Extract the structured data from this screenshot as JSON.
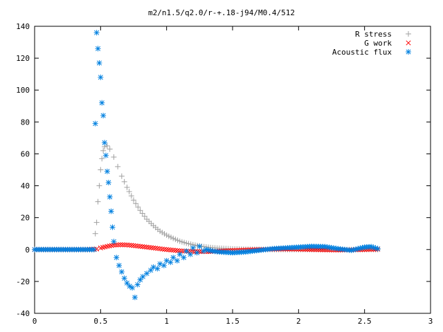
{
  "chart_data": {
    "type": "scatter",
    "title": "m2/n1.5/q2.0/r-+.18-j94/M0.4/512",
    "xlabel": "",
    "ylabel": "",
    "xlim": [
      0,
      3
    ],
    "ylim": [
      -40,
      140
    ],
    "xticks": [
      0,
      0.5,
      1,
      1.5,
      2,
      2.5,
      3
    ],
    "xtick_labels": [
      "0",
      "0.5",
      "1",
      "1.5",
      "2",
      "2.5",
      "3"
    ],
    "yticks": [
      -40,
      -20,
      0,
      20,
      40,
      60,
      80,
      100,
      120,
      140
    ],
    "ytick_labels": [
      "-40",
      "-20",
      "0",
      "20",
      "40",
      "60",
      "80",
      "100",
      "120",
      "140"
    ],
    "grid": false,
    "legend_position": "top-right",
    "series": [
      {
        "name": "R stress",
        "marker": "plus",
        "color": "#a0a0a0",
        "points": [
          [
            0,
            0
          ],
          [
            0.1,
            0
          ],
          [
            0.2,
            0
          ],
          [
            0.3,
            0
          ],
          [
            0.4,
            0
          ],
          [
            0.45,
            0
          ],
          [
            0.46,
            10
          ],
          [
            0.47,
            17
          ],
          [
            0.48,
            30
          ],
          [
            0.49,
            40
          ],
          [
            0.5,
            50
          ],
          [
            0.51,
            57
          ],
          [
            0.52,
            62
          ],
          [
            0.53,
            64.5
          ],
          [
            0.55,
            65
          ],
          [
            0.57,
            63
          ],
          [
            0.6,
            58
          ],
          [
            0.63,
            52
          ],
          [
            0.66,
            46
          ],
          [
            0.7,
            39
          ],
          [
            0.75,
            31
          ],
          [
            0.8,
            24.5
          ],
          [
            0.85,
            19
          ],
          [
            0.9,
            15
          ],
          [
            0.95,
            11.5
          ],
          [
            1.0,
            9
          ],
          [
            1.05,
            7
          ],
          [
            1.1,
            5.2
          ],
          [
            1.15,
            4
          ],
          [
            1.2,
            3
          ],
          [
            1.25,
            2.2
          ],
          [
            1.3,
            1.6
          ],
          [
            1.35,
            1.1
          ],
          [
            1.4,
            0.8
          ],
          [
            1.5,
            0.4
          ],
          [
            1.6,
            0.2
          ],
          [
            1.8,
            0
          ],
          [
            2.0,
            0
          ],
          [
            2.2,
            0
          ],
          [
            2.4,
            0
          ],
          [
            2.6,
            0
          ]
        ]
      },
      {
        "name": "G work",
        "marker": "cross",
        "color": "#ff0000",
        "points": [
          [
            0,
            0
          ],
          [
            0.2,
            0
          ],
          [
            0.4,
            0
          ],
          [
            0.47,
            0.3
          ],
          [
            0.5,
            1
          ],
          [
            0.55,
            2
          ],
          [
            0.6,
            2.8
          ],
          [
            0.65,
            3
          ],
          [
            0.7,
            2.9
          ],
          [
            0.75,
            2.5
          ],
          [
            0.8,
            2
          ],
          [
            0.85,
            1.5
          ],
          [
            0.9,
            1
          ],
          [
            0.95,
            0.5
          ],
          [
            1.0,
            0
          ],
          [
            1.05,
            -0.4
          ],
          [
            1.1,
            -0.8
          ],
          [
            1.2,
            -1.2
          ],
          [
            1.3,
            -1.3
          ],
          [
            1.4,
            -1
          ],
          [
            1.5,
            -0.6
          ],
          [
            1.6,
            -0.3
          ],
          [
            1.7,
            0
          ],
          [
            1.8,
            0.2
          ],
          [
            1.9,
            0.3
          ],
          [
            2.0,
            0.2
          ],
          [
            2.1,
            0
          ],
          [
            2.2,
            -0.2
          ],
          [
            2.3,
            -0.3
          ],
          [
            2.4,
            -0.2
          ],
          [
            2.5,
            0
          ],
          [
            2.6,
            0.2
          ]
        ]
      },
      {
        "name": "Acoustic flux",
        "marker": "star",
        "color": "#0080e0",
        "points": [
          [
            0,
            0
          ],
          [
            0.1,
            0
          ],
          [
            0.2,
            0
          ],
          [
            0.3,
            0
          ],
          [
            0.4,
            0
          ],
          [
            0.45,
            0
          ],
          [
            0.46,
            79
          ],
          [
            0.47,
            136
          ],
          [
            0.48,
            126
          ],
          [
            0.49,
            117
          ],
          [
            0.5,
            108
          ],
          [
            0.51,
            92
          ],
          [
            0.52,
            84
          ],
          [
            0.53,
            67
          ],
          [
            0.54,
            59
          ],
          [
            0.55,
            49
          ],
          [
            0.56,
            42
          ],
          [
            0.57,
            33
          ],
          [
            0.58,
            24
          ],
          [
            0.59,
            14
          ],
          [
            0.6,
            5
          ],
          [
            0.62,
            -5
          ],
          [
            0.64,
            -10
          ],
          [
            0.66,
            -14
          ],
          [
            0.68,
            -18
          ],
          [
            0.7,
            -21
          ],
          [
            0.72,
            -23
          ],
          [
            0.74,
            -24
          ],
          [
            0.76,
            -30
          ],
          [
            0.78,
            -22
          ],
          [
            0.8,
            -19
          ],
          [
            0.82,
            -17
          ],
          [
            0.85,
            -15
          ],
          [
            0.88,
            -13
          ],
          [
            0.9,
            -11
          ],
          [
            0.93,
            -12
          ],
          [
            0.95,
            -9
          ],
          [
            0.98,
            -10
          ],
          [
            1.0,
            -7
          ],
          [
            1.03,
            -8
          ],
          [
            1.05,
            -5
          ],
          [
            1.08,
            -7
          ],
          [
            1.1,
            -3
          ],
          [
            1.13,
            -5
          ],
          [
            1.15,
            -1
          ],
          [
            1.18,
            -3
          ],
          [
            1.2,
            1
          ],
          [
            1.23,
            -2
          ],
          [
            1.25,
            2
          ],
          [
            1.28,
            -1
          ],
          [
            1.3,
            0
          ],
          [
            1.35,
            -1
          ],
          [
            1.4,
            -1.5
          ],
          [
            1.5,
            -2
          ],
          [
            1.6,
            -1.5
          ],
          [
            1.7,
            -0.5
          ],
          [
            1.8,
            0.5
          ],
          [
            1.9,
            1
          ],
          [
            2.0,
            1.5
          ],
          [
            2.1,
            2
          ],
          [
            2.2,
            1.8
          ],
          [
            2.3,
            0.5
          ],
          [
            2.4,
            -0.5
          ],
          [
            2.45,
            0.5
          ],
          [
            2.5,
            1.5
          ],
          [
            2.55,
            1.8
          ],
          [
            2.6,
            0.5
          ]
        ]
      }
    ]
  }
}
